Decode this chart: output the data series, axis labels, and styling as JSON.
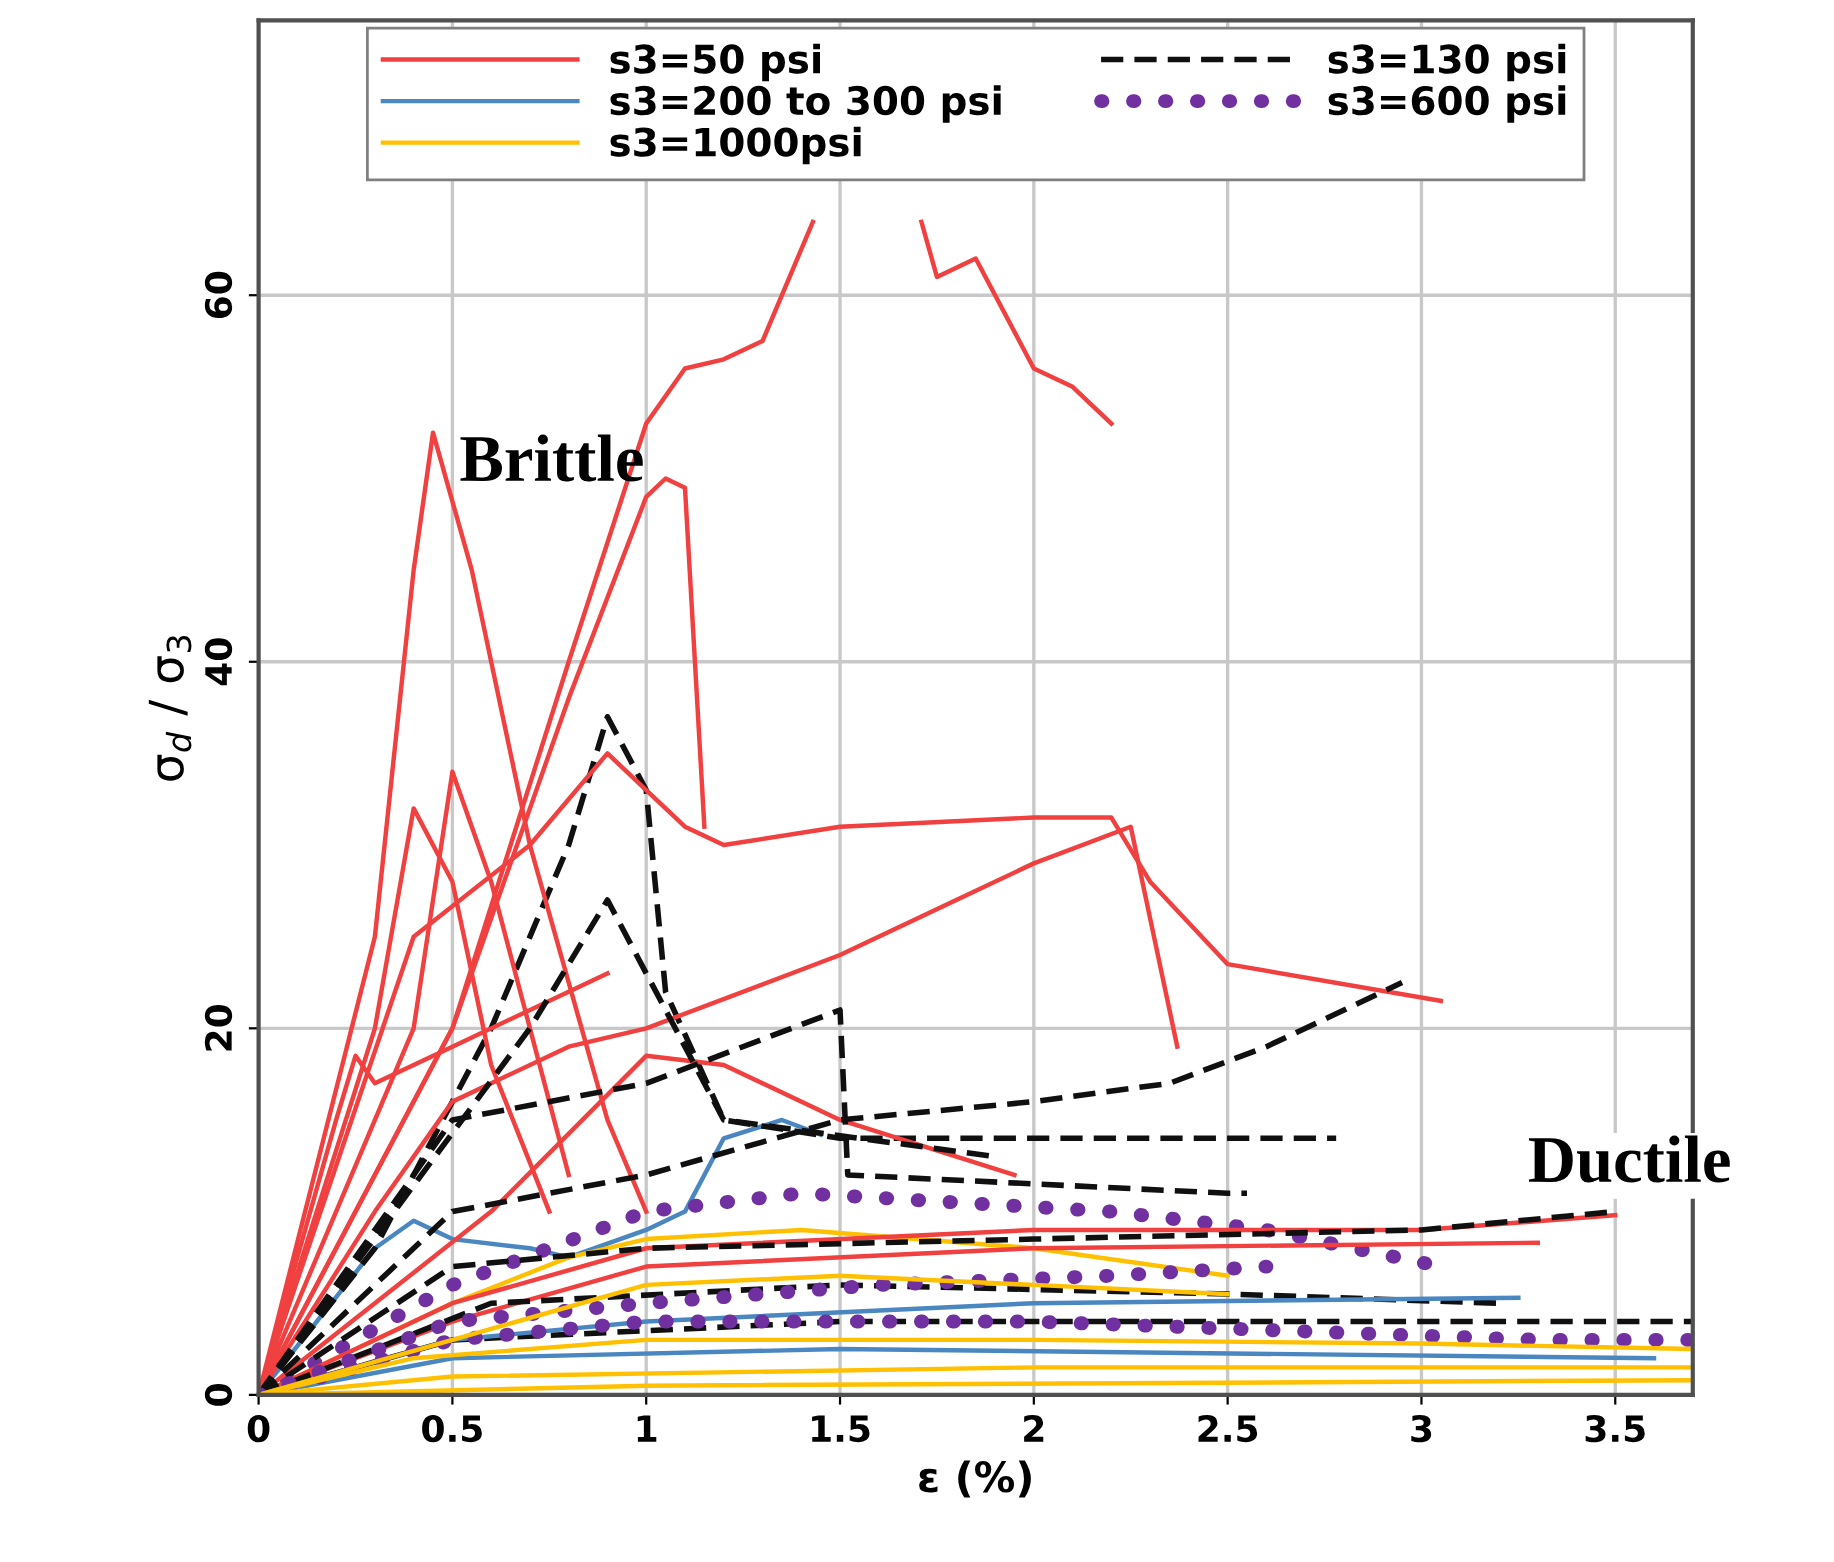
{
  "chart_data": {
    "type": "line",
    "xlabel": "ε (%)",
    "ylabel": "σ$_{d}$ / σ$_{3}$",
    "xlim": [
      0,
      3.7
    ],
    "ylim": [
      0,
      75
    ],
    "xticks": [
      0,
      0.5,
      1,
      1.5,
      2,
      2.5,
      3,
      3.5
    ],
    "yticks": [
      0,
      20,
      40,
      60
    ],
    "grid": true,
    "legend": "top",
    "annotations": [
      "Brittle",
      "Ductile"
    ],
    "series": [
      {
        "name": "s3=50 psi",
        "color": "#f04040",
        "line_style": "solid",
        "x": [
          0,
          0.5,
          0.8,
          1.0,
          1.1,
          1.2,
          1.3,
          1.43,
          1.6,
          1.71,
          1.75,
          1.85,
          2.0,
          2.1,
          2.2
        ],
        "values": [
          0,
          20,
          40,
          53,
          56,
          56.5,
          57.5,
          64,
          null,
          64,
          61,
          62,
          56,
          55,
          53
        ]
      },
      {
        "name": "s3=200 to 300 psi",
        "color": "#4a86c0",
        "line_style": "solid",
        "x": [
          0,
          0.3,
          0.4,
          0.5,
          0.7,
          0.8,
          1.0,
          1.1,
          1.2,
          1.35,
          1.45
        ],
        "values": [
          0,
          8,
          9.5,
          8.5,
          8,
          7.5,
          9,
          10,
          14,
          15,
          14.2
        ]
      },
      {
        "name": "s3=1000psi",
        "color": "#ffc000",
        "line_style": "solid",
        "x": [
          0,
          0.5,
          0.8,
          1.0,
          1.4,
          2.0,
          2.5
        ],
        "values": [
          0,
          5,
          7.5,
          8.5,
          9,
          8,
          6.5
        ]
      },
      {
        "name": "s3=130 psi",
        "color": "#101010",
        "line_style": "dashed",
        "x": [
          0,
          0.3,
          0.6,
          0.8,
          0.9,
          1.0,
          1.05,
          1.2,
          1.5,
          2.78
        ],
        "values": [
          0,
          8,
          20,
          30,
          37,
          33,
          22,
          15,
          14,
          14
        ]
      },
      {
        "name": "s3=600 psi",
        "color": "#7030a0",
        "line_style": "dotted",
        "x": [
          0,
          0.5,
          1.0,
          1.4,
          1.8,
          2.2,
          2.6,
          3.05
        ],
        "values": [
          0,
          6,
          10,
          11,
          10.5,
          10,
          9,
          7
        ]
      },
      {
        "color": "#f04040",
        "line_style": "solid",
        "x": [
          0,
          0.3,
          0.4,
          0.45,
          0.55,
          0.7,
          0.9,
          1.0
        ],
        "values": [
          0,
          25,
          45,
          52.5,
          45,
          30,
          15,
          10
        ]
      },
      {
        "color": "#f04040",
        "line_style": "solid",
        "x": [
          0,
          0.5,
          0.8,
          1.0,
          1.05,
          1.1,
          1.15
        ],
        "values": [
          0,
          20,
          38,
          49,
          50,
          49.5,
          31
        ]
      },
      {
        "color": "#f04040",
        "line_style": "solid",
        "x": [
          0,
          0.4,
          0.7,
          0.9,
          1.0,
          1.1,
          1.2,
          1.5,
          2.0,
          2.2,
          2.3,
          2.5,
          3.05
        ],
        "values": [
          0,
          25,
          30,
          35,
          33,
          31,
          30,
          31,
          31.5,
          31.5,
          28,
          23.5,
          21.5
        ]
      },
      {
        "color": "#f04040",
        "line_style": "solid",
        "x": [
          0,
          0.3,
          0.5,
          0.8,
          1.0,
          1.5,
          1.8,
          2.0,
          2.25,
          2.37
        ],
        "values": [
          0,
          10,
          16,
          19,
          20,
          24,
          27,
          29,
          31,
          19
        ]
      },
      {
        "color": "#f04040",
        "line_style": "solid",
        "x": [
          0,
          0.2,
          0.25,
          0.3,
          0.5,
          0.8,
          0.9
        ],
        "values": [
          0,
          15,
          18.5,
          17,
          19,
          22,
          23
        ]
      },
      {
        "color": "#f04040",
        "line_style": "solid",
        "x": [
          0,
          0.3,
          0.4,
          0.5,
          0.6,
          0.75
        ],
        "values": [
          0,
          20,
          32,
          28,
          18,
          10
        ]
      },
      {
        "color": "#f04040",
        "line_style": "solid",
        "x": [
          0,
          0.4,
          0.5,
          0.6,
          0.8
        ],
        "values": [
          0,
          20,
          34,
          28,
          12
        ]
      },
      {
        "color": "#f04040",
        "line_style": "solid",
        "x": [
          0,
          0.6,
          1.0,
          1.2,
          1.5,
          1.95
        ],
        "values": [
          0,
          10,
          18.5,
          18,
          15,
          12
        ]
      },
      {
        "color": "#f04040",
        "line_style": "solid",
        "x": [
          0,
          0.5,
          1.0,
          2.0,
          3.0,
          3.5
        ],
        "values": [
          0,
          5,
          8,
          9,
          9,
          9.8
        ]
      },
      {
        "color": "#f04040",
        "line_style": "solid",
        "x": [
          0,
          0.5,
          1.0,
          2.0,
          3.3
        ],
        "values": [
          0,
          4,
          7,
          8,
          8.3
        ]
      },
      {
        "color": "#101010",
        "line_style": "dashed",
        "x": [
          0,
          0.5,
          1.0,
          1.5,
          1.52,
          2.5,
          2.55
        ],
        "values": [
          0,
          15,
          17,
          21,
          12,
          11,
          11
        ]
      },
      {
        "color": "#101010",
        "line_style": "dashed",
        "x": [
          0,
          0.5,
          1.0,
          1.5,
          2.0,
          2.35,
          2.6,
          2.95
        ],
        "values": [
          0,
          10,
          12,
          15,
          16,
          17,
          19,
          22.5
        ]
      },
      {
        "color": "#101010",
        "line_style": "dashed",
        "x": [
          0,
          0.7,
          0.9,
          1.0,
          1.2,
          1.9
        ],
        "values": [
          0,
          20,
          27,
          23,
          15,
          13
        ]
      },
      {
        "color": "#101010",
        "line_style": "dashed",
        "x": [
          0,
          0.5,
          1.0,
          2.0,
          3.0,
          3.5
        ],
        "values": [
          0,
          7,
          8,
          8.5,
          9,
          10
        ]
      },
      {
        "color": "#101010",
        "line_style": "dashed",
        "x": [
          0,
          0.6,
          1.5,
          2.5,
          3.2
        ],
        "values": [
          0,
          5,
          6,
          5.5,
          5
        ]
      },
      {
        "color": "#101010",
        "line_style": "dashed",
        "x": [
          0,
          0.5,
          1.5,
          3.0,
          3.7
        ],
        "values": [
          0,
          3,
          4,
          4,
          4
        ]
      },
      {
        "color": "#4a86c0",
        "line_style": "solid",
        "x": [
          0,
          0.5,
          1.0,
          2.0,
          3.25
        ],
        "values": [
          0,
          3,
          4,
          5,
          5.3
        ]
      },
      {
        "color": "#4a86c0",
        "line_style": "solid",
        "x": [
          0,
          0.5,
          1.5,
          3.6
        ],
        "values": [
          0,
          2,
          2.5,
          2
        ]
      },
      {
        "color": "#7030a0",
        "line_style": "dotted",
        "x": [
          0,
          0.5,
          1.0,
          1.6,
          2.2,
          2.6
        ],
        "values": [
          0,
          4,
          5,
          6,
          6.5,
          7
        ]
      },
      {
        "color": "#7030a0",
        "line_style": "dotted",
        "x": [
          0,
          0.5,
          1.0,
          2.0,
          3.3,
          3.7
        ],
        "values": [
          0,
          3,
          4,
          4,
          3,
          3
        ]
      },
      {
        "color": "#ffc000",
        "line_style": "solid",
        "x": [
          0,
          0.5,
          1.0,
          1.5,
          2.0,
          2.5
        ],
        "values": [
          0,
          3,
          6,
          6.5,
          6,
          5.5
        ]
      },
      {
        "color": "#ffc000",
        "line_style": "solid",
        "x": [
          0,
          0.4,
          1.0,
          2.0,
          3.0,
          3.7
        ],
        "values": [
          0,
          2,
          3,
          3,
          2.8,
          2.5
        ]
      },
      {
        "color": "#ffc000",
        "line_style": "solid",
        "x": [
          0,
          0.5,
          2.0,
          3.7
        ],
        "values": [
          0,
          1,
          1.5,
          1.5
        ]
      },
      {
        "color": "#ffc000",
        "line_style": "solid",
        "x": [
          0,
          1.0,
          3.7
        ],
        "values": [
          0,
          0.5,
          0.8
        ]
      }
    ]
  }
}
